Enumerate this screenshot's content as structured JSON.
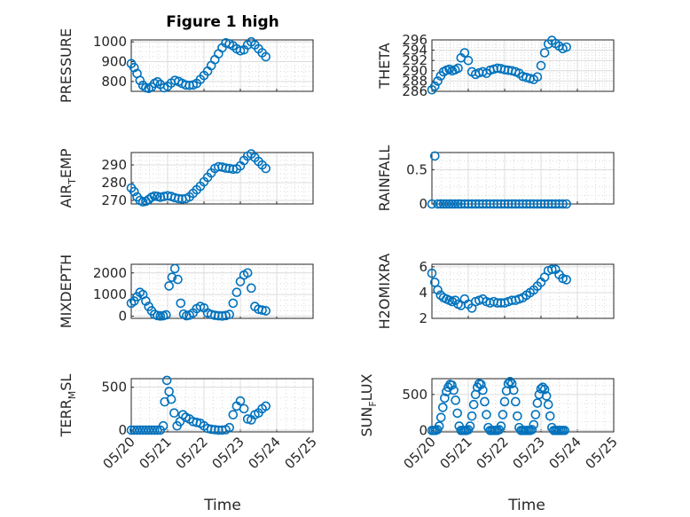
{
  "figure": {
    "title": "Figure 1 high"
  },
  "chart_data": [
    {
      "type": "scatter",
      "id": "pressure",
      "ylabel": "PRESSURE",
      "ylim": [
        750,
        1010
      ],
      "yticks": [
        800,
        900,
        1000
      ],
      "xlim": [
        "05/20",
        "05/25"
      ],
      "xticks": [
        "05/20",
        "05/21",
        "05/22",
        "05/23",
        "05/24",
        "05/25"
      ],
      "xticks_shown": false,
      "x": [
        0.0,
        0.08,
        0.16,
        0.24,
        0.32,
        0.4,
        0.48,
        0.56,
        0.64,
        0.72,
        0.8,
        0.9,
        1.0,
        1.1,
        1.2,
        1.3,
        1.4,
        1.5,
        1.6,
        1.7,
        1.8,
        1.9,
        2.0,
        2.1,
        2.2,
        2.3,
        2.4,
        2.5,
        2.6,
        2.7,
        2.8,
        2.9,
        3.0,
        3.1,
        3.2,
        3.3,
        3.4,
        3.5,
        3.6,
        3.7
      ],
      "y": [
        890,
        870,
        840,
        805,
        780,
        768,
        765,
        772,
        790,
        798,
        785,
        768,
        775,
        792,
        805,
        800,
        790,
        782,
        780,
        782,
        790,
        810,
        830,
        852,
        880,
        910,
        940,
        970,
        995,
        990,
        980,
        965,
        955,
        960,
        985,
        1000,
        985,
        965,
        945,
        925
      ]
    },
    {
      "type": "scatter",
      "id": "theta",
      "ylabel": "THETA",
      "ylim": [
        286,
        296
      ],
      "yticks": [
        286,
        288,
        290,
        292,
        294,
        296
      ],
      "xlim": [
        "05/20",
        "05/25"
      ],
      "xticks": [
        "05/20",
        "05/21",
        "05/22",
        "05/23",
        "05/24",
        "05/25"
      ],
      "xticks_shown": false,
      "x": [
        0.0,
        0.08,
        0.16,
        0.24,
        0.32,
        0.4,
        0.48,
        0.56,
        0.64,
        0.72,
        0.8,
        0.9,
        1.0,
        1.1,
        1.2,
        1.3,
        1.4,
        1.5,
        1.6,
        1.7,
        1.8,
        1.9,
        2.0,
        2.1,
        2.2,
        2.3,
        2.4,
        2.5,
        2.6,
        2.7,
        2.8,
        2.9,
        3.0,
        3.1,
        3.2,
        3.3,
        3.4,
        3.5,
        3.6,
        3.7
      ],
      "y": [
        286.3,
        287.0,
        288.0,
        289.0,
        289.8,
        290.1,
        290.3,
        290.0,
        290.2,
        290.5,
        292.5,
        293.5,
        292.0,
        289.8,
        289.3,
        289.6,
        289.8,
        289.5,
        290.1,
        290.3,
        290.5,
        290.4,
        290.2,
        290.1,
        290.0,
        289.8,
        289.5,
        288.9,
        288.7,
        288.5,
        288.3,
        288.8,
        291.0,
        293.5,
        295.2,
        295.9,
        295.3,
        294.8,
        294.3,
        294.6
      ]
    },
    {
      "type": "scatter",
      "id": "air_temp",
      "ylabel": "AIR",
      "ylabel_sub": "T",
      "ylabel_rest": "EMP",
      "ylim": [
        268,
        297
      ],
      "yticks": [
        270,
        280,
        290
      ],
      "xlim": [
        "05/20",
        "05/25"
      ],
      "xticks": [
        "05/20",
        "05/21",
        "05/22",
        "05/23",
        "05/24",
        "05/25"
      ],
      "xticks_shown": false,
      "x": [
        0.0,
        0.08,
        0.16,
        0.24,
        0.32,
        0.4,
        0.48,
        0.56,
        0.64,
        0.72,
        0.8,
        0.9,
        1.0,
        1.1,
        1.2,
        1.3,
        1.4,
        1.5,
        1.6,
        1.7,
        1.8,
        1.9,
        2.0,
        2.1,
        2.2,
        2.3,
        2.4,
        2.5,
        2.6,
        2.7,
        2.8,
        2.9,
        3.0,
        3.1,
        3.2,
        3.3,
        3.4,
        3.5,
        3.6,
        3.7
      ],
      "y": [
        277,
        275,
        272,
        270,
        269.2,
        269.5,
        270.5,
        271.8,
        272.5,
        272.2,
        271.8,
        272.2,
        272.6,
        272.2,
        271.5,
        271.0,
        270.8,
        271.0,
        272.0,
        274.0,
        276.0,
        278.0,
        280.5,
        283.0,
        285.5,
        288.0,
        289.0,
        288.8,
        288.2,
        288.0,
        287.6,
        287.8,
        289.5,
        292.5,
        295.0,
        296.2,
        294.2,
        292.0,
        290.0,
        288.0
      ]
    },
    {
      "type": "scatter",
      "id": "rainfall",
      "ylabel": "RAINFALL",
      "ylim": [
        0,
        0.75
      ],
      "yticks": [
        0,
        0.5
      ],
      "xlim": [
        "05/20",
        "05/25"
      ],
      "xticks": [
        "05/20",
        "05/21",
        "05/22",
        "05/23",
        "05/24",
        "05/25"
      ],
      "xticks_shown": false,
      "x": [
        0.0,
        0.08,
        0.16,
        0.24,
        0.32,
        0.4,
        0.48,
        0.56,
        0.64,
        0.72,
        0.8,
        0.9,
        1.0,
        1.1,
        1.2,
        1.3,
        1.4,
        1.5,
        1.6,
        1.7,
        1.8,
        1.9,
        2.0,
        2.1,
        2.2,
        2.3,
        2.4,
        2.5,
        2.6,
        2.7,
        2.8,
        2.9,
        3.0,
        3.1,
        3.2,
        3.3,
        3.4,
        3.5,
        3.6,
        3.7
      ],
      "y": [
        0,
        0.7,
        0,
        0,
        0,
        0,
        0,
        0,
        0,
        0,
        0,
        0,
        0,
        0,
        0,
        0,
        0,
        0,
        0,
        0,
        0,
        0,
        0,
        0,
        0,
        0,
        0,
        0,
        0,
        0,
        0,
        0,
        0,
        0,
        0,
        0,
        0,
        0,
        0,
        0
      ]
    },
    {
      "type": "scatter",
      "id": "mixdepth",
      "ylabel": "MIXDEPTH",
      "ylim": [
        -100,
        2400
      ],
      "yticks": [
        0,
        1000,
        2000
      ],
      "xlim": [
        "05/20",
        "05/25"
      ],
      "xticks": [
        "05/20",
        "05/21",
        "05/22",
        "05/23",
        "05/24",
        "05/25"
      ],
      "xticks_shown": false,
      "x": [
        0.0,
        0.08,
        0.16,
        0.24,
        0.32,
        0.4,
        0.48,
        0.56,
        0.64,
        0.72,
        0.8,
        0.88,
        0.96,
        1.04,
        1.12,
        1.2,
        1.28,
        1.36,
        1.44,
        1.52,
        1.6,
        1.7,
        1.8,
        1.9,
        2.0,
        2.1,
        2.2,
        2.3,
        2.4,
        2.5,
        2.6,
        2.7,
        2.8,
        2.9,
        3.0,
        3.1,
        3.2,
        3.3,
        3.4,
        3.5,
        3.6,
        3.7
      ],
      "y": [
        600,
        700,
        900,
        1100,
        1000,
        700,
        450,
        250,
        80,
        30,
        10,
        20,
        60,
        1400,
        1800,
        2200,
        1700,
        600,
        100,
        20,
        50,
        150,
        350,
        450,
        380,
        150,
        80,
        40,
        20,
        10,
        30,
        80,
        600,
        1100,
        1600,
        1900,
        2000,
        1300,
        450,
        320,
        280,
        250
      ]
    },
    {
      "type": "scatter",
      "id": "h2omixra",
      "ylabel": "H2OMIXRA",
      "ylim": [
        2,
        6.2
      ],
      "yticks": [
        2,
        4,
        6
      ],
      "xlim": [
        "05/20",
        "05/25"
      ],
      "xticks": [
        "05/20",
        "05/21",
        "05/22",
        "05/23",
        "05/24",
        "05/25"
      ],
      "xticks_shown": false,
      "x": [
        0.0,
        0.08,
        0.16,
        0.24,
        0.32,
        0.4,
        0.48,
        0.56,
        0.64,
        0.72,
        0.8,
        0.9,
        1.0,
        1.1,
        1.2,
        1.3,
        1.4,
        1.5,
        1.6,
        1.7,
        1.8,
        1.9,
        2.0,
        2.1,
        2.2,
        2.3,
        2.4,
        2.5,
        2.6,
        2.7,
        2.8,
        2.9,
        3.0,
        3.1,
        3.2,
        3.3,
        3.4,
        3.5,
        3.6,
        3.7
      ],
      "y": [
        5.5,
        4.8,
        4.2,
        3.8,
        3.6,
        3.5,
        3.4,
        3.3,
        3.4,
        3.1,
        3.0,
        3.5,
        3.1,
        2.8,
        3.3,
        3.4,
        3.5,
        3.3,
        3.2,
        3.3,
        3.2,
        3.2,
        3.2,
        3.3,
        3.4,
        3.4,
        3.5,
        3.6,
        3.8,
        4.0,
        4.2,
        4.5,
        4.8,
        5.2,
        5.7,
        5.8,
        5.8,
        5.4,
        5.1,
        5.0
      ]
    },
    {
      "type": "scatter",
      "id": "terr_msl",
      "ylabel": "TERR",
      "ylabel_sub": "M",
      "ylabel_rest": "SL",
      "ylim": [
        -20,
        600
      ],
      "yticks": [
        0,
        500
      ],
      "xlim": [
        "05/20",
        "05/25"
      ],
      "xticks": [
        "05/20",
        "05/21",
        "05/22",
        "05/23",
        "05/24",
        "05/25"
      ],
      "x": [
        0.0,
        0.08,
        0.16,
        0.24,
        0.32,
        0.4,
        0.48,
        0.56,
        0.64,
        0.72,
        0.8,
        0.88,
        0.92,
        0.98,
        1.04,
        1.1,
        1.18,
        1.26,
        1.34,
        1.42,
        1.5,
        1.6,
        1.7,
        1.8,
        1.9,
        2.0,
        2.1,
        2.2,
        2.3,
        2.4,
        2.5,
        2.6,
        2.7,
        2.8,
        2.9,
        3.0,
        3.1,
        3.2,
        3.3,
        3.4,
        3.5,
        3.6,
        3.7
      ],
      "y": [
        0,
        0,
        0,
        0,
        0,
        0,
        0,
        0,
        0,
        0,
        0,
        50,
        330,
        580,
        450,
        360,
        200,
        50,
        100,
        180,
        150,
        130,
        100,
        90,
        80,
        50,
        20,
        10,
        5,
        0,
        0,
        5,
        30,
        180,
        280,
        340,
        250,
        130,
        120,
        180,
        200,
        250,
        280
      ]
    },
    {
      "type": "scatter",
      "id": "sun_flux",
      "ylabel": "SUN",
      "ylabel_sub": "F",
      "ylabel_rest": "LUX",
      "ylim": [
        -20,
        720
      ],
      "yticks": [
        0,
        500
      ],
      "xlim": [
        "05/20",
        "05/25"
      ],
      "xticks": [
        "05/20",
        "05/21",
        "05/22",
        "05/23",
        "05/24",
        "05/25"
      ],
      "x": [
        0.0,
        0.05,
        0.1,
        0.15,
        0.2,
        0.25,
        0.3,
        0.35,
        0.4,
        0.45,
        0.5,
        0.55,
        0.6,
        0.65,
        0.7,
        0.75,
        0.8,
        0.85,
        0.9,
        0.95,
        1.0,
        1.05,
        1.1,
        1.15,
        1.2,
        1.25,
        1.3,
        1.35,
        1.4,
        1.45,
        1.5,
        1.55,
        1.6,
        1.65,
        1.7,
        1.75,
        1.8,
        1.85,
        1.9,
        1.95,
        2.0,
        2.05,
        2.1,
        2.15,
        2.2,
        2.25,
        2.3,
        2.35,
        2.4,
        2.45,
        2.5,
        2.55,
        2.6,
        2.65,
        2.7,
        2.75,
        2.8,
        2.85,
        2.9,
        2.95,
        3.0,
        3.05,
        3.1,
        3.15,
        3.2,
        3.25,
        3.3,
        3.35,
        3.4,
        3.45,
        3.5,
        3.55,
        3.6,
        3.65
      ],
      "y": [
        0,
        0,
        0,
        10,
        60,
        180,
        320,
        450,
        540,
        600,
        640,
        630,
        560,
        420,
        240,
        60,
        0,
        0,
        0,
        0,
        10,
        60,
        200,
        360,
        500,
        600,
        650,
        640,
        560,
        400,
        220,
        40,
        0,
        0,
        0,
        0,
        0,
        10,
        60,
        220,
        400,
        550,
        650,
        680,
        650,
        560,
        400,
        200,
        40,
        0,
        0,
        0,
        0,
        0,
        0,
        10,
        80,
        220,
        380,
        500,
        580,
        600,
        570,
        480,
        360,
        200,
        40,
        0,
        0,
        0,
        0,
        0,
        0,
        0
      ]
    }
  ],
  "xlabel": "Time"
}
